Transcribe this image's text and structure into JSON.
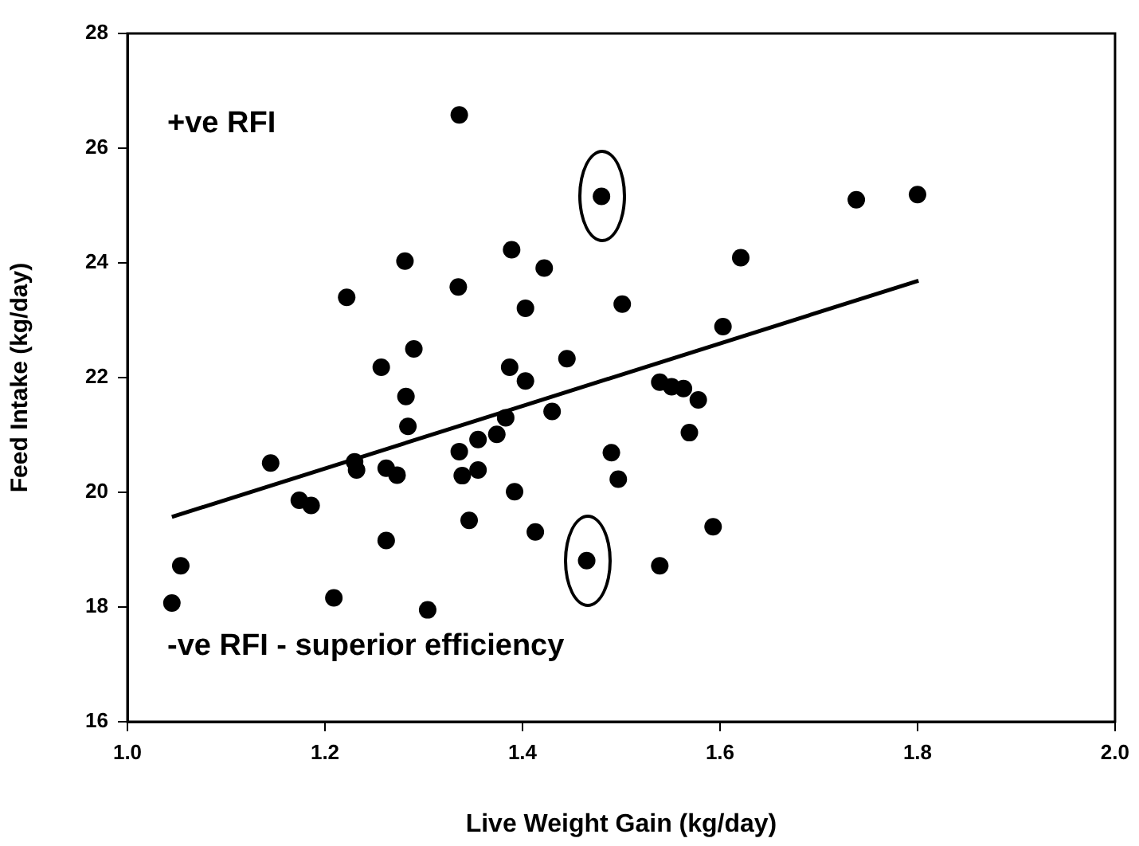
{
  "chart_data": {
    "type": "scatter",
    "xlabel": "Live Weight Gain (kg/day)",
    "ylabel": "Feed Intake (kg/day)",
    "annotations": [
      "+ve RFI",
      "-ve RFI - superior efficiency"
    ],
    "xlim": [
      1.0,
      2.0
    ],
    "xticks": [
      {
        "value": 1.0,
        "label": "1.0"
      },
      {
        "value": 1.2,
        "label": "1.2"
      },
      {
        "value": 1.4,
        "label": "1.4"
      },
      {
        "value": 1.6,
        "label": "1.6"
      },
      {
        "value": 1.8,
        "label": "1.8"
      },
      {
        "value": 2.0,
        "label": "2.0"
      }
    ],
    "ylim": [
      16,
      28
    ],
    "yticks": [
      16,
      18,
      20,
      22,
      24,
      26,
      28
    ],
    "grid": false,
    "legend": false,
    "marker": "circle",
    "series": [
      {
        "color": "#000000",
        "x": [
          1.045,
          1.054,
          1.145,
          1.174,
          1.186,
          1.222,
          1.209,
          1.23,
          1.232,
          1.257,
          1.262,
          1.273,
          1.262,
          1.281,
          1.29,
          1.282,
          1.284,
          1.304,
          1.336,
          1.335,
          1.336,
          1.339,
          1.346,
          1.355,
          1.355,
          1.374,
          1.383,
          1.389,
          1.387,
          1.403,
          1.403,
          1.392,
          1.422,
          1.43,
          1.413,
          1.445,
          1.465,
          1.48,
          1.501,
          1.49,
          1.497,
          1.539,
          1.539,
          1.551,
          1.563,
          1.578,
          1.569,
          1.593,
          1.603,
          1.621,
          1.738,
          1.8
        ],
        "values": [
          18.07,
          18.72,
          20.51,
          19.86,
          19.77,
          23.4,
          18.16,
          20.53,
          20.39,
          22.18,
          20.42,
          20.3,
          19.16,
          24.03,
          22.5,
          21.67,
          21.15,
          17.95,
          26.58,
          23.58,
          20.71,
          20.29,
          19.51,
          20.92,
          20.39,
          21.01,
          21.3,
          24.23,
          22.18,
          23.21,
          21.94,
          20.01,
          23.91,
          21.41,
          19.31,
          22.33,
          18.81,
          25.16,
          23.28,
          20.69,
          20.23,
          18.72,
          21.92,
          21.84,
          21.81,
          21.61,
          21.04,
          19.4,
          22.89,
          24.09,
          25.1,
          25.19
        ]
      },
      {
        "type": "line",
        "color": "#000000",
        "x": [
          1.045,
          1.801
        ],
        "values": [
          19.57,
          23.69
        ],
        "line_style": "solid",
        "marker": "none"
      }
    ]
  }
}
